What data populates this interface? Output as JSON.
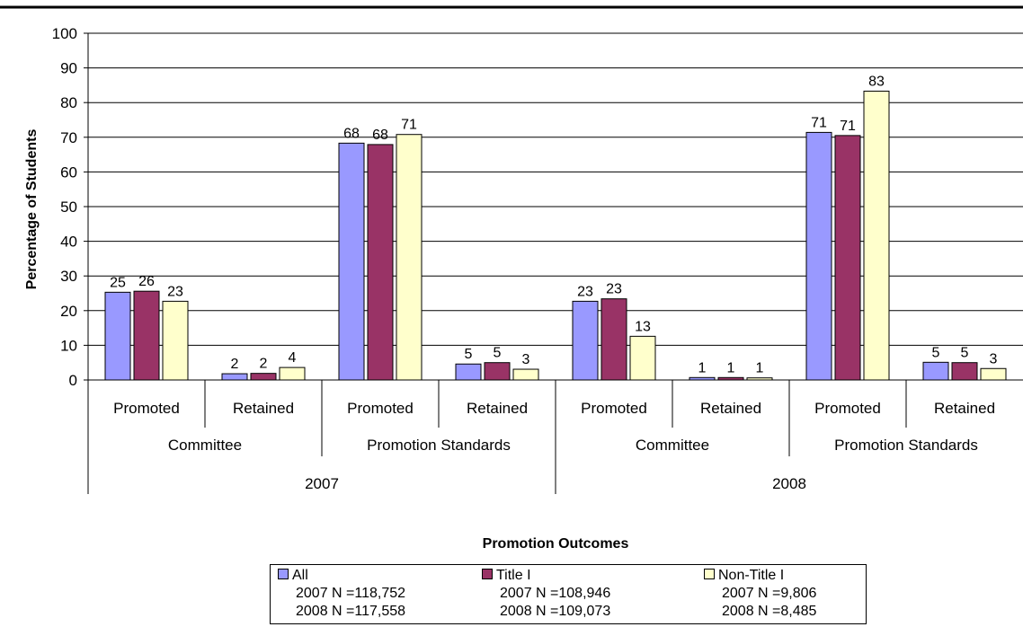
{
  "chart_data": {
    "type": "bar",
    "ylabel": "Percentage of Students",
    "xlabel": "Promotion Outcomes",
    "ylim": [
      0,
      100
    ],
    "yticks": [
      0,
      10,
      20,
      30,
      40,
      50,
      60,
      70,
      80,
      90,
      100
    ],
    "grid": true,
    "legend_position": "bottom",
    "categories": [
      {
        "outcome": "Promoted",
        "group": "Committee",
        "year": "2007"
      },
      {
        "outcome": "Retained",
        "group": "Committee",
        "year": "2007"
      },
      {
        "outcome": "Promoted",
        "group": "Promotion Standards",
        "year": "2007"
      },
      {
        "outcome": "Retained",
        "group": "Promotion Standards",
        "year": "2007"
      },
      {
        "outcome": "Promoted",
        "group": "Committee",
        "year": "2008"
      },
      {
        "outcome": "Retained",
        "group": "Committee",
        "year": "2008"
      },
      {
        "outcome": "Promoted",
        "group": "Promotion Standards",
        "year": "2008"
      },
      {
        "outcome": "Retained",
        "group": "Promotion Standards",
        "year": "2008"
      }
    ],
    "group_labels": [
      "Committee",
      "Promotion Standards",
      "Committee",
      "Promotion Standards"
    ],
    "year_labels": [
      "2007",
      "2008"
    ],
    "series": [
      {
        "name": "All",
        "color": "#9999ff",
        "values": [
          25.3,
          1.8,
          68.3,
          4.6,
          22.7,
          0.7,
          71.4,
          5.1
        ],
        "labels": [
          "25",
          "2",
          "68",
          "5",
          "23",
          "1",
          "71",
          "5"
        ]
      },
      {
        "name": "Title I",
        "color": "#993366",
        "values": [
          25.6,
          1.9,
          67.9,
          5.0,
          23.4,
          0.7,
          70.5,
          5.0
        ],
        "labels": [
          "26",
          "2",
          "68",
          "5",
          "23",
          "1",
          "71",
          "5"
        ]
      },
      {
        "name": "Non-Title I",
        "color": "#ffffcc",
        "values": [
          22.7,
          3.6,
          70.8,
          3.1,
          12.6,
          0.6,
          83.3,
          3.3
        ],
        "labels": [
          "23",
          "4",
          "71",
          "3",
          "13",
          "1",
          "83",
          "3"
        ]
      }
    ]
  },
  "legend": [
    {
      "name": "All",
      "color": "#9999ff",
      "line1": "2007 N =118,752",
      "line2": "2008 N =117,558"
    },
    {
      "name": "Title I",
      "color": "#993366",
      "line1": "2007 N =108,946",
      "line2": "2008 N =109,073"
    },
    {
      "name": "Non-Title I",
      "color": "#ffffcc",
      "line1": "2007 N =9,806",
      "line2": "2008 N =8,485"
    }
  ]
}
